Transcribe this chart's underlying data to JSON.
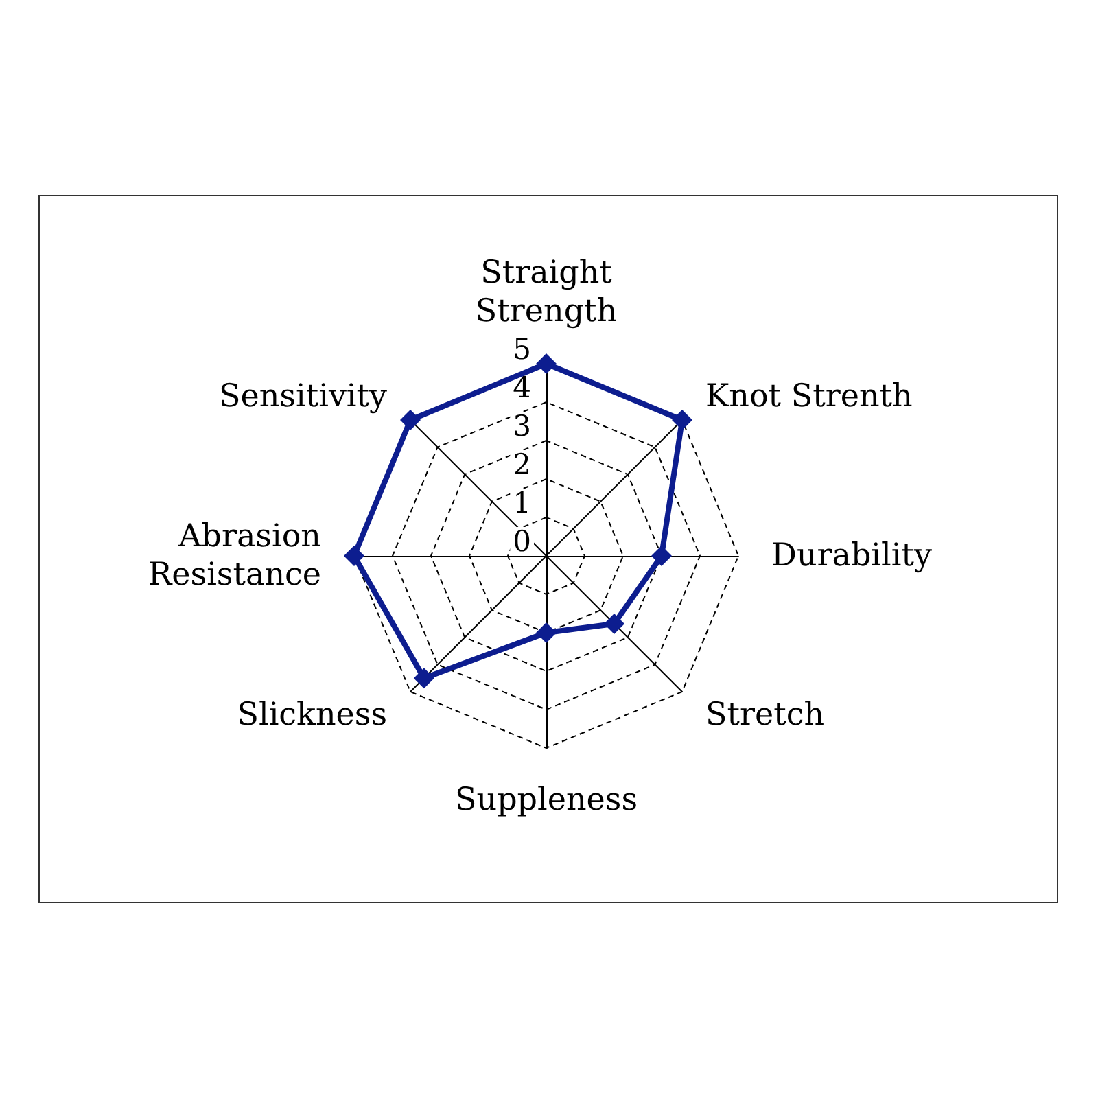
{
  "chart_data": {
    "type": "radar",
    "categories": [
      "Straight Strength",
      "Knot Strenth",
      "Durability",
      "Stretch",
      "Suppleness",
      "Slickness",
      "Abrasion Resistance",
      "Sensitivity"
    ],
    "series": [
      {
        "color": "#0d1d8f",
        "values": [
          5,
          5,
          3,
          2.5,
          2,
          4.5,
          5,
          5
        ]
      }
    ],
    "ylim": [
      0,
      5
    ],
    "yticks": [
      0,
      1,
      2,
      3,
      4,
      5
    ],
    "grid": true,
    "marker": "diamond",
    "line_style": "solid"
  }
}
